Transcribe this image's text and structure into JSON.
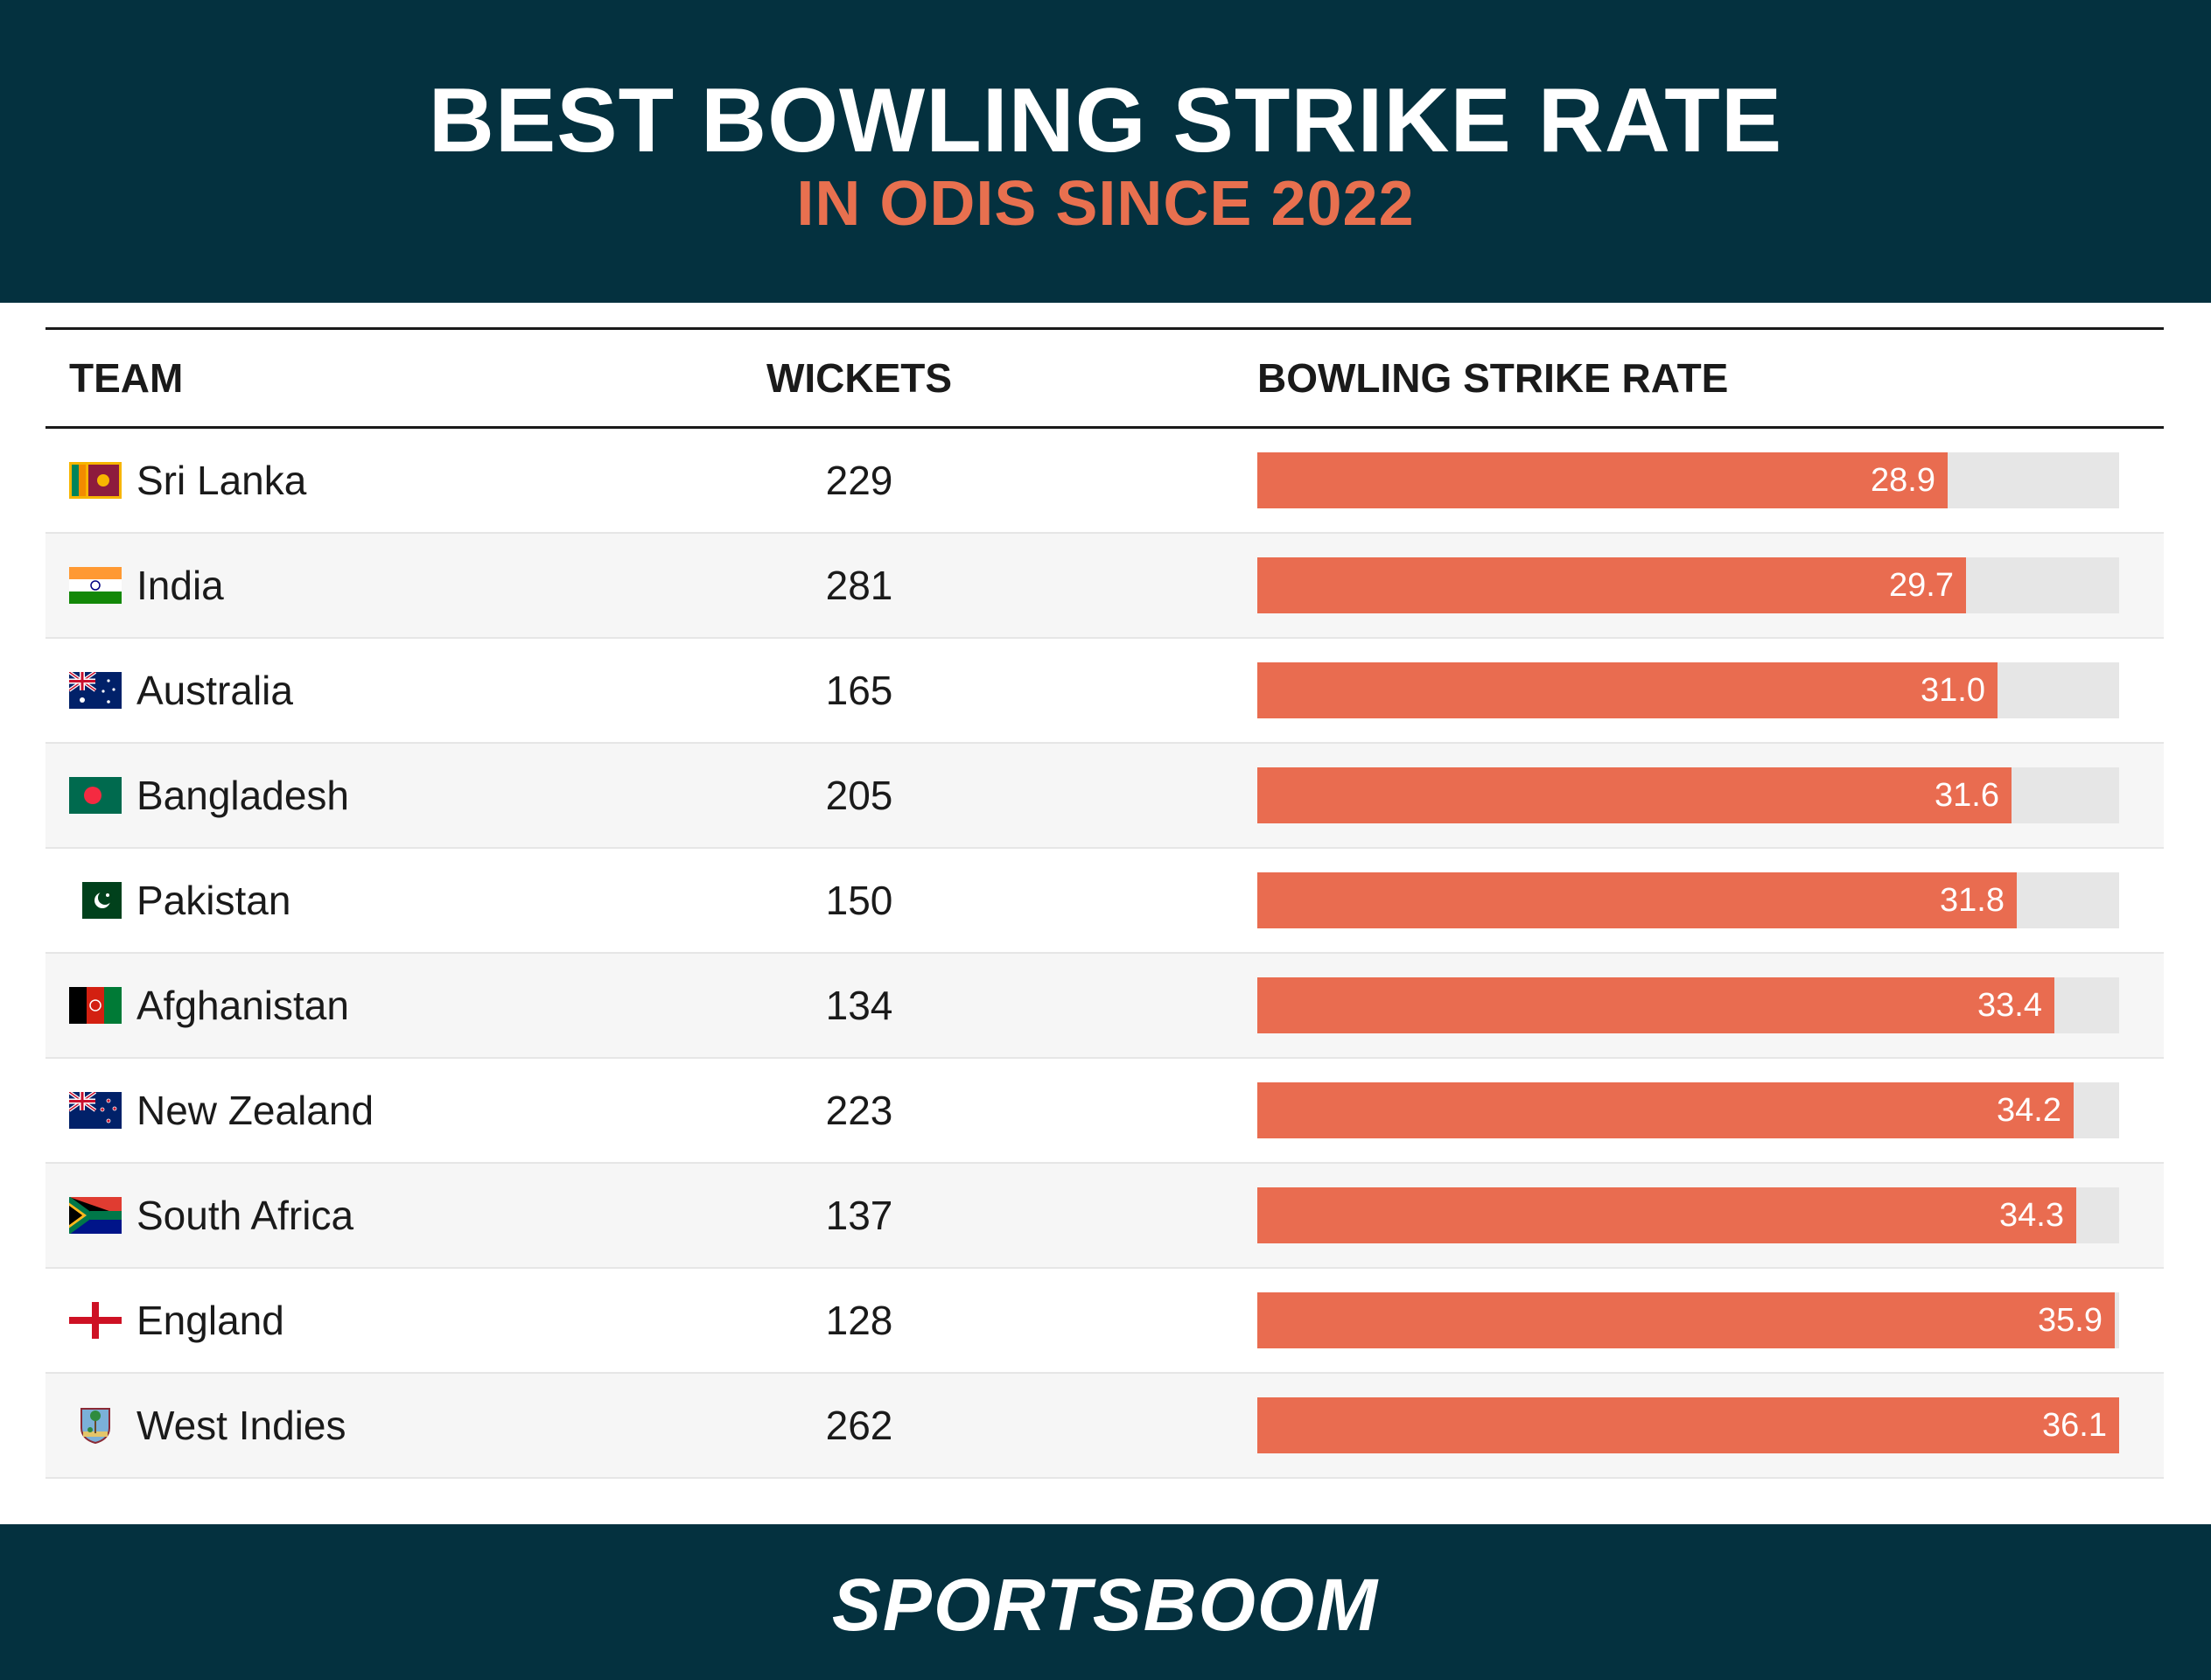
{
  "header": {
    "title": "BEST BOWLING STRIKE RATE",
    "subtitle": "IN ODIS SINCE 2022"
  },
  "colors": {
    "navy": "#04313f",
    "accent": "#e96c50",
    "track": "#e6e6e6"
  },
  "chart_data": {
    "type": "bar",
    "columns": [
      "TEAM",
      "WICKETS",
      "BOWLING STRIKE RATE"
    ],
    "xlim": [
      0,
      36.1
    ],
    "rows": [
      {
        "team": "Sri Lanka",
        "flag": "sri-lanka-flag-icon",
        "wickets": "229",
        "rate": 28.9,
        "rate_label": "28.9"
      },
      {
        "team": "India",
        "flag": "india-flag-icon",
        "wickets": "281",
        "rate": 29.7,
        "rate_label": "29.7"
      },
      {
        "team": "Australia",
        "flag": "australia-flag-icon",
        "wickets": "165",
        "rate": 31.0,
        "rate_label": "31.0"
      },
      {
        "team": "Bangladesh",
        "flag": "bangladesh-flag-icon",
        "wickets": "205",
        "rate": 31.6,
        "rate_label": "31.6"
      },
      {
        "team": "Pakistan",
        "flag": "pakistan-flag-icon",
        "wickets": "150",
        "rate": 31.8,
        "rate_label": "31.8"
      },
      {
        "team": "Afghanistan",
        "flag": "afghanistan-flag-icon",
        "wickets": "134",
        "rate": 33.4,
        "rate_label": "33.4"
      },
      {
        "team": "New Zealand",
        "flag": "new-zealand-flag-icon",
        "wickets": "223",
        "rate": 34.2,
        "rate_label": "34.2"
      },
      {
        "team": "South Africa",
        "flag": "south-africa-flag-icon",
        "wickets": "137",
        "rate": 34.3,
        "rate_label": "34.3"
      },
      {
        "team": "England",
        "flag": "england-flag-icon",
        "wickets": "128",
        "rate": 35.9,
        "rate_label": "35.9"
      },
      {
        "team": "West Indies",
        "flag": "west-indies-flag-icon",
        "wickets": "262",
        "rate": 36.1,
        "rate_label": "36.1"
      }
    ]
  },
  "footer": {
    "logo_text": "SPORTSBOOM"
  }
}
